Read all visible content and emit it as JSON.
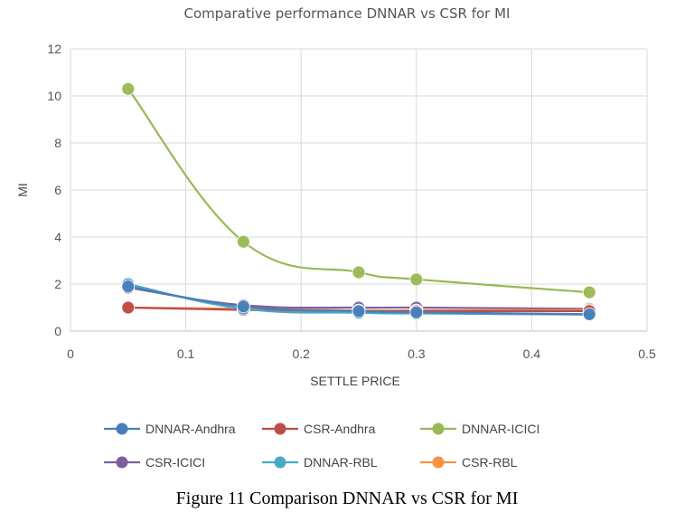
{
  "chart_data": {
    "type": "line",
    "title": "Comparative  performance  DNNAR vs CSR  for MI",
    "xlabel": "SETTLE PRICE",
    "ylabel": "MI",
    "xlim": [
      0,
      0.5
    ],
    "ylim": [
      0,
      12
    ],
    "xticks": [
      0,
      0.1,
      0.2,
      0.3,
      0.4,
      0.5
    ],
    "xtick_labels": [
      "0",
      "0.1",
      "0.2",
      "0.3",
      "0.4",
      "0.5"
    ],
    "yticks": [
      0,
      2,
      4,
      6,
      8,
      10,
      12
    ],
    "ytick_labels": [
      "0",
      "2",
      "4",
      "6",
      "8",
      "10",
      "12"
    ],
    "grid": true,
    "legend_position": "bottom",
    "x": [
      0.05,
      0.15,
      0.25,
      0.3,
      0.45
    ],
    "series": [
      {
        "name": "DNNAR-Andhra",
        "color": "#4a7ebb",
        "values": [
          1.9,
          1.05,
          0.85,
          0.8,
          0.72
        ]
      },
      {
        "name": "CSR-Andhra",
        "color": "#be4b48",
        "values": [
          1.0,
          0.9,
          0.85,
          0.85,
          0.85
        ]
      },
      {
        "name": "DNNAR-ICICI",
        "color": "#98b954",
        "values": [
          10.3,
          3.8,
          2.5,
          2.2,
          1.65
        ]
      },
      {
        "name": "CSR-ICICI",
        "color": "#7d5fa0",
        "values": [
          1.85,
          1.1,
          1.0,
          1.0,
          0.95
        ]
      },
      {
        "name": "DNNAR-RBL",
        "color": "#46aac5",
        "values": [
          2.0,
          0.95,
          0.78,
          0.75,
          0.7
        ]
      },
      {
        "name": "CSR-RBL",
        "color": "#f69240",
        "values": [
          1.0,
          0.95,
          0.88,
          0.88,
          0.9
        ]
      }
    ]
  },
  "caption": "Figure 11 Comparison DNNAR vs CSR for MI"
}
